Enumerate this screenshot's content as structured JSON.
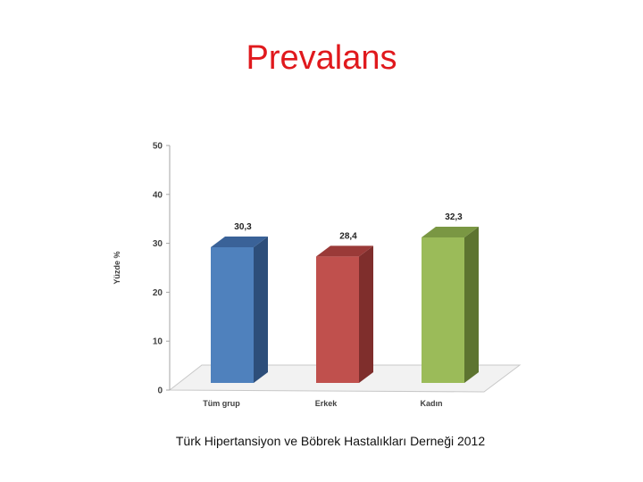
{
  "slide": {
    "title": "Prevalans",
    "footer": "Türk Hipertansiyon ve Böbrek Hastalıkları Derneği 2012"
  },
  "chart_data": {
    "type": "bar",
    "style": "3d",
    "categories": [
      "Tüm grup",
      "Erkek",
      "Kadın"
    ],
    "values": [
      30.3,
      28.4,
      32.3
    ],
    "value_labels": [
      "30,3",
      "28,4",
      "32,3"
    ],
    "ylabel": "Yüzde %",
    "ylim": [
      0,
      50
    ],
    "yticks": [
      0,
      10,
      20,
      30,
      40,
      50
    ],
    "grid": false,
    "legend": "none",
    "colors": [
      "#4f81bd",
      "#c0504d",
      "#9bbb59"
    ],
    "side_colors": [
      "#2d4e7a",
      "#7f2e2c",
      "#5d7430"
    ],
    "top_colors": [
      "#3a6298",
      "#9a3a38",
      "#7a9743"
    ]
  }
}
